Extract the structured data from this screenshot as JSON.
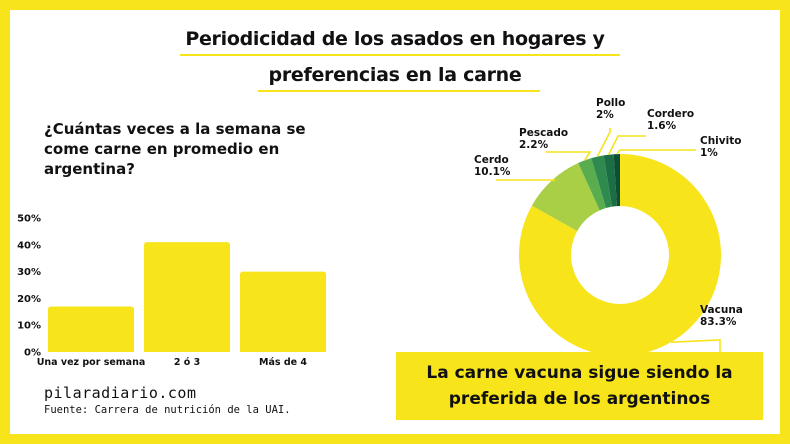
{
  "title_line1": "Periodicidad de los asados en hogares y",
  "title_line2": "preferencias en la carne",
  "question": "¿Cuántas veces a la semana se come carne en promedio en argentina?",
  "site": "pilaradiario.com",
  "source": "Fuente: Carrera de nutrición de la UAI.",
  "callout_line1": "La carne vacuna sigue siendo la",
  "callout_line2": "preferida de los argentinos",
  "colors": {
    "accent": "#f7e41a",
    "bar": "#f7e41a",
    "pie": [
      "#f7e41a",
      "#a8cf45",
      "#59ad4e",
      "#2e8a4e",
      "#1c6f44",
      "#0c4e36"
    ]
  },
  "chart_data": [
    {
      "type": "bar",
      "categories": [
        "Una vez por semana",
        "2 ó 3",
        "Más de 4"
      ],
      "values": [
        17,
        41,
        30
      ],
      "ylim": [
        0,
        50
      ],
      "yticks": [
        "0%",
        "10%",
        "20%",
        "30%",
        "40%",
        "50%"
      ],
      "grid": false
    },
    {
      "type": "pie",
      "donut": true,
      "labels": [
        "Vacuna",
        "Cerdo",
        "Pescado",
        "Pollo",
        "Cordero",
        "Chivito"
      ],
      "values": [
        83.3,
        10.1,
        2.2,
        2,
        1.6,
        1
      ],
      "value_labels": [
        "83.3%",
        "10.1%",
        "2.2%",
        "2%",
        "1.6%",
        "1%"
      ]
    }
  ]
}
